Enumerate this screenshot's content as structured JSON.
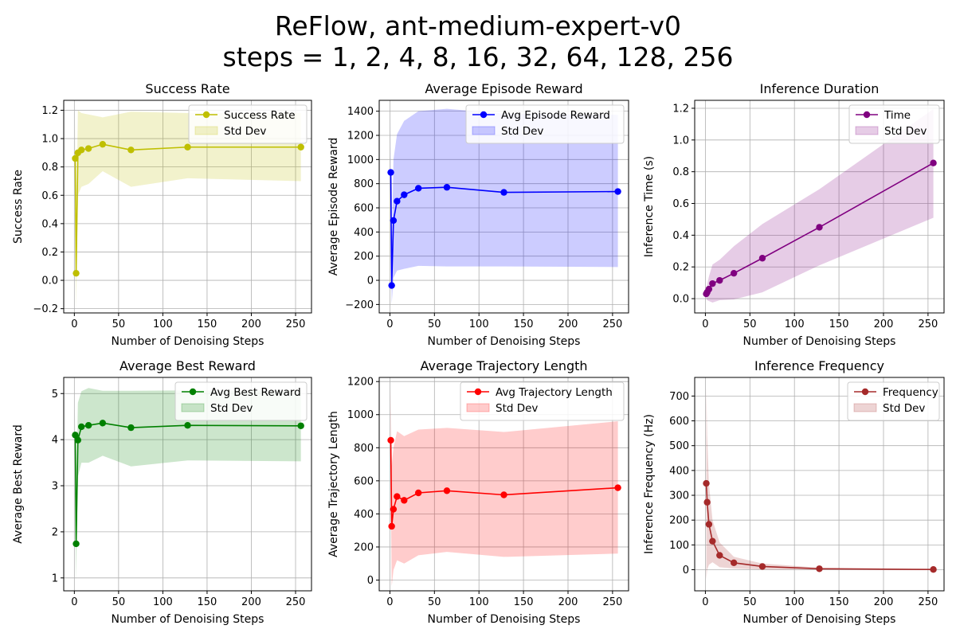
{
  "figure": {
    "title_line1": "ReFlow, ant-medium-expert-v0",
    "title_line2": "steps = 1, 2, 4, 8, 16, 32, 64, 128, 256"
  },
  "chart_data": [
    {
      "type": "line",
      "title": "Success Rate",
      "xlabel": "Number of Denoising Steps",
      "ylabel": "Success Rate",
      "xlim": [
        -12,
        268
      ],
      "ylim": [
        -0.23,
        1.27
      ],
      "xticks": [
        0,
        50,
        100,
        150,
        200,
        250
      ],
      "yticks": [
        -0.2,
        0.0,
        0.2,
        0.4,
        0.6,
        0.8,
        1.0,
        1.2
      ],
      "ytick_labels": [
        "−0.2",
        "0.0",
        "0.2",
        "0.4",
        "0.6",
        "0.8",
        "1.0",
        "1.2"
      ],
      "grid": true,
      "legend_position": "upper right",
      "color": "#bfbf00",
      "x": [
        1,
        2,
        4,
        8,
        16,
        32,
        64,
        128,
        256
      ],
      "series": [
        {
          "name": "Success Rate",
          "values": [
            0.86,
            0.05,
            0.9,
            0.92,
            0.93,
            0.96,
            0.92,
            0.94,
            0.94
          ]
        }
      ],
      "band": {
        "name": "Std Dev",
        "lower": [
          0.52,
          -0.2,
          0.6,
          0.66,
          0.68,
          0.77,
          0.66,
          0.72,
          0.7
        ],
        "upper": [
          1.2,
          0.3,
          1.2,
          1.18,
          1.17,
          1.15,
          1.19,
          1.18,
          1.18
        ]
      }
    },
    {
      "type": "line",
      "title": "Average Episode Reward",
      "xlabel": "Number of Denoising Steps",
      "ylabel": "Average Episode Reward",
      "xlim": [
        -12,
        268
      ],
      "ylim": [
        -270,
        1490
      ],
      "xticks": [
        0,
        50,
        100,
        150,
        200,
        250
      ],
      "yticks": [
        -200,
        0,
        200,
        400,
        600,
        800,
        1000,
        1200,
        1400
      ],
      "ytick_labels": [
        "−200",
        "0",
        "200",
        "400",
        "600",
        "800",
        "1000",
        "1200",
        "1400"
      ],
      "grid": true,
      "legend_position": "upper right",
      "color": "#0000ff",
      "x": [
        1,
        2,
        4,
        8,
        16,
        32,
        64,
        128,
        256
      ],
      "series": [
        {
          "name": "Avg Episode Reward",
          "values": [
            893,
            -43,
            495,
            655,
            708,
            762,
            770,
            728,
            735
          ]
        }
      ],
      "band": {
        "name": "Std Dev",
        "lower": [
          420,
          -200,
          20,
          80,
          95,
          120,
          115,
          115,
          110
        ],
        "upper": [
          1350,
          200,
          1000,
          1210,
          1320,
          1400,
          1420,
          1380,
          1370
        ]
      }
    },
    {
      "type": "line",
      "title": "Inference Duration",
      "xlabel": "Number of Denoising Steps",
      "ylabel": "Inference Time (s)",
      "xlim": [
        -12,
        268
      ],
      "ylim": [
        -0.09,
        1.25
      ],
      "xticks": [
        0,
        50,
        100,
        150,
        200,
        250
      ],
      "yticks": [
        0.0,
        0.2,
        0.4,
        0.6,
        0.8,
        1.0,
        1.2
      ],
      "ytick_labels": [
        "0.0",
        "0.2",
        "0.4",
        "0.6",
        "0.8",
        "1.0",
        "1.2"
      ],
      "grid": true,
      "legend_position": "upper right",
      "color": "#800080",
      "x": [
        1,
        2,
        4,
        8,
        16,
        32,
        64,
        128,
        256
      ],
      "series": [
        {
          "name": "Time",
          "values": [
            0.03,
            0.04,
            0.06,
            0.095,
            0.115,
            0.16,
            0.255,
            0.45,
            0.855
          ]
        }
      ],
      "band": {
        "name": "Std Dev",
        "lower": [
          0.0,
          -0.01,
          -0.015,
          -0.025,
          -0.01,
          -0.005,
          0.04,
          0.21,
          0.51
        ],
        "upper": [
          0.06,
          0.09,
          0.14,
          0.215,
          0.245,
          0.33,
          0.47,
          0.69,
          1.195
        ]
      }
    },
    {
      "type": "line",
      "title": "Average Best Reward",
      "xlabel": "Number of Denoising Steps",
      "ylabel": "Average Best Reward",
      "xlim": [
        -12,
        268
      ],
      "ylim": [
        0.72,
        5.35
      ],
      "xticks": [
        0,
        50,
        100,
        150,
        200,
        250
      ],
      "yticks": [
        1,
        2,
        3,
        4,
        5
      ],
      "ytick_labels": [
        "1",
        "2",
        "3",
        "4",
        "5"
      ],
      "grid": true,
      "legend_position": "upper right",
      "color": "#008000",
      "x": [
        1,
        2,
        4,
        8,
        16,
        32,
        64,
        128,
        256
      ],
      "series": [
        {
          "name": "Avg Best Reward",
          "values": [
            4.1,
            1.74,
            3.99,
            4.28,
            4.31,
            4.36,
            4.26,
            4.31,
            4.3
          ]
        }
      ],
      "band": {
        "name": "Std Dev",
        "lower": [
          3.3,
          0.95,
          3.2,
          3.5,
          3.5,
          3.65,
          3.42,
          3.55,
          3.53
        ],
        "upper": [
          4.6,
          2.5,
          4.8,
          5.05,
          5.12,
          5.06,
          5.06,
          5.07,
          5.07
        ]
      }
    },
    {
      "type": "line",
      "title": "Average Trajectory Length",
      "xlabel": "Number of Denoising Steps",
      "ylabel": "Average Trajectory Length",
      "xlim": [
        -12,
        268
      ],
      "ylim": [
        -65,
        1225
      ],
      "xticks": [
        0,
        50,
        100,
        150,
        200,
        250
      ],
      "yticks": [
        0,
        200,
        400,
        600,
        800,
        1000,
        1200
      ],
      "ytick_labels": [
        "0",
        "200",
        "400",
        "600",
        "800",
        "1000",
        "1200"
      ],
      "grid": true,
      "legend_position": "upper right",
      "color": "#ff0000",
      "x": [
        1,
        2,
        4,
        8,
        16,
        32,
        64,
        128,
        256
      ],
      "series": [
        {
          "name": "Avg Trajectory Length",
          "values": [
            845,
            325,
            428,
            505,
            482,
            527,
            540,
            515,
            558
          ]
        }
      ],
      "band": {
        "name": "Std Dev",
        "lower": [
          520,
          -40,
          60,
          120,
          100,
          150,
          170,
          140,
          160
        ],
        "upper": [
          1170,
          690,
          800,
          900,
          870,
          910,
          920,
          895,
          960
        ]
      }
    },
    {
      "type": "line",
      "title": "Inference Frequency",
      "xlabel": "Number of Denoising Steps",
      "ylabel": "Inference Frequency (Hz)",
      "xlim": [
        -12,
        268
      ],
      "ylim": [
        -85,
        775
      ],
      "xticks": [
        0,
        50,
        100,
        150,
        200,
        250
      ],
      "yticks": [
        0,
        100,
        200,
        300,
        400,
        500,
        600,
        700
      ],
      "ytick_labels": [
        "0",
        "100",
        "200",
        "300",
        "400",
        "500",
        "600",
        "700"
      ],
      "grid": true,
      "legend_position": "upper right",
      "color": "#a52a2a",
      "x": [
        1,
        2,
        4,
        8,
        16,
        32,
        64,
        128,
        256
      ],
      "series": [
        {
          "name": "Frequency",
          "values": [
            348,
            272,
            183,
            115,
            58,
            28,
            13,
            4,
            1
          ]
        }
      ],
      "band": {
        "name": "Std Dev",
        "lower": [
          -40,
          0,
          20,
          30,
          10,
          5,
          1,
          0,
          0
        ],
        "upper": [
          740,
          545,
          345,
          200,
          110,
          52,
          25,
          8,
          2
        ]
      }
    }
  ]
}
